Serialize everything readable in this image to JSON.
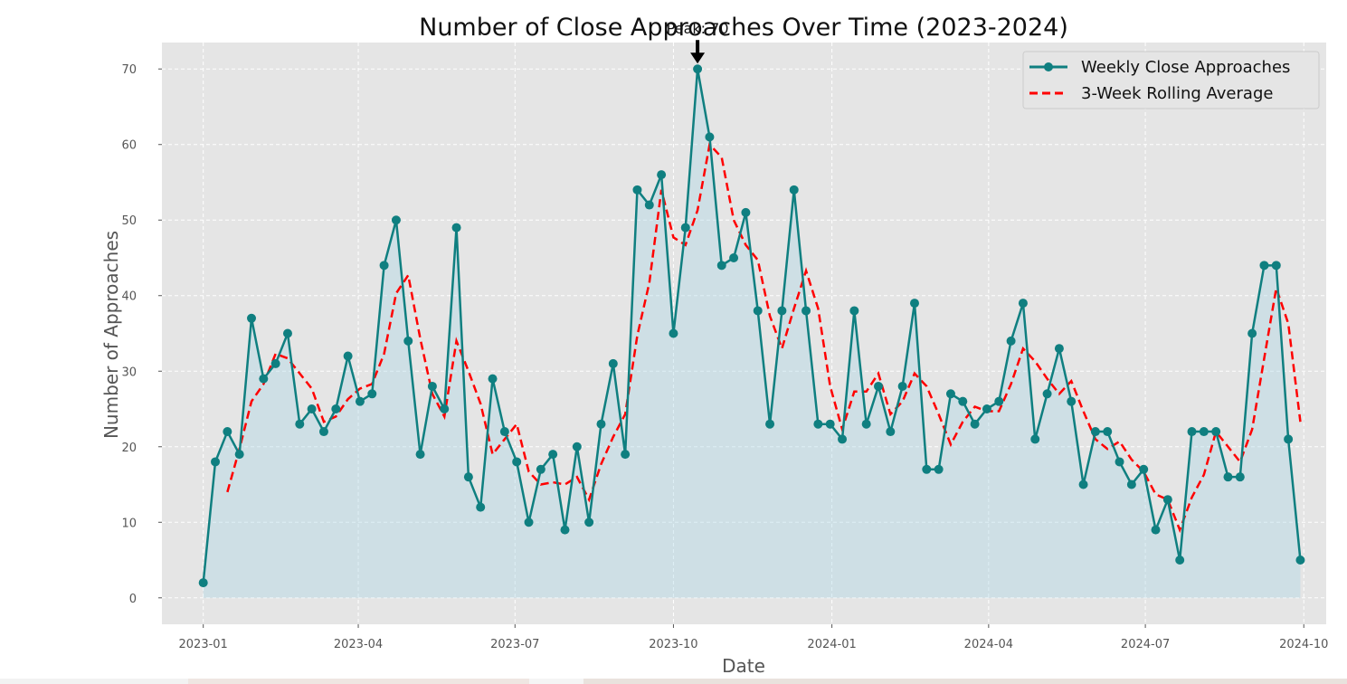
{
  "chart_data": {
    "type": "line",
    "title": "Number of Close Approaches Over Time (2023-2024)",
    "xlabel": "Date",
    "ylabel": "Number of Approaches",
    "ylim": [
      -3.5,
      73.5
    ],
    "xlim": [
      "2022-12-08",
      "2024-10-14"
    ],
    "grid": true,
    "legend_placement": "top-right",
    "x_ticks": [
      "2023-01-01",
      "2023-04-01",
      "2023-07-01",
      "2023-10-01",
      "2024-01-01",
      "2024-04-01",
      "2024-07-01",
      "2024-10-01"
    ],
    "x_tick_labels": [
      "2023-01",
      "2023-04",
      "2023-07",
      "2023-10",
      "2024-01",
      "2024-04",
      "2024-07",
      "2024-10"
    ],
    "y_ticks": [
      0,
      10,
      20,
      30,
      40,
      50,
      60,
      70
    ],
    "x": [
      "2023-01-01",
      "2023-01-08",
      "2023-01-15",
      "2023-01-22",
      "2023-01-29",
      "2023-02-05",
      "2023-02-12",
      "2023-02-19",
      "2023-02-26",
      "2023-03-05",
      "2023-03-12",
      "2023-03-19",
      "2023-03-26",
      "2023-04-02",
      "2023-04-09",
      "2023-04-16",
      "2023-04-23",
      "2023-04-30",
      "2023-05-07",
      "2023-05-14",
      "2023-05-21",
      "2023-05-28",
      "2023-06-04",
      "2023-06-11",
      "2023-06-18",
      "2023-06-25",
      "2023-07-02",
      "2023-07-09",
      "2023-07-16",
      "2023-07-23",
      "2023-07-30",
      "2023-08-06",
      "2023-08-13",
      "2023-08-20",
      "2023-08-27",
      "2023-09-03",
      "2023-09-10",
      "2023-09-17",
      "2023-09-24",
      "2023-10-01",
      "2023-10-08",
      "2023-10-15",
      "2023-10-22",
      "2023-10-29",
      "2023-11-05",
      "2023-11-12",
      "2023-11-19",
      "2023-11-26",
      "2023-12-03",
      "2023-12-10",
      "2023-12-17",
      "2023-12-24",
      "2023-12-31",
      "2024-01-07",
      "2024-01-14",
      "2024-01-21",
      "2024-01-28",
      "2024-02-04",
      "2024-02-11",
      "2024-02-18",
      "2024-02-25",
      "2024-03-03",
      "2024-03-10",
      "2024-03-17",
      "2024-03-24",
      "2024-03-31",
      "2024-04-07",
      "2024-04-14",
      "2024-04-21",
      "2024-04-28",
      "2024-05-05",
      "2024-05-12",
      "2024-05-19",
      "2024-05-26",
      "2024-06-02",
      "2024-06-09",
      "2024-06-16",
      "2024-06-23",
      "2024-06-30",
      "2024-07-07",
      "2024-07-14",
      "2024-07-21",
      "2024-07-28",
      "2024-08-04",
      "2024-08-11",
      "2024-08-18",
      "2024-08-25",
      "2024-09-01",
      "2024-09-08",
      "2024-09-15",
      "2024-09-22",
      "2024-09-29"
    ],
    "series": [
      {
        "name": "Weekly Close Approaches",
        "color": "#0f7f80",
        "style": "solid-with-markers",
        "values": [
          2,
          18,
          22,
          19,
          37,
          29,
          31,
          35,
          23,
          25,
          22,
          25,
          32,
          26,
          27,
          44,
          50,
          34,
          19,
          28,
          25,
          49,
          16,
          12,
          29,
          22,
          18,
          10,
          17,
          19,
          9,
          20,
          10,
          23,
          31,
          19,
          54,
          52,
          56,
          35,
          49,
          70,
          61,
          44,
          45,
          51,
          38,
          23,
          38,
          54,
          38,
          23,
          23,
          21,
          38,
          23,
          28,
          22,
          28,
          39,
          17,
          17,
          27,
          26,
          23,
          25,
          26,
          34,
          39,
          21,
          27,
          33,
          26,
          15,
          22,
          22,
          18,
          15,
          17,
          9,
          13,
          5,
          22,
          22,
          22,
          16,
          16,
          35,
          44,
          44,
          21,
          5
        ]
      },
      {
        "name": "3-Week Rolling Average",
        "color": "#ff0000",
        "style": "dashed",
        "values": [
          null,
          null,
          14,
          19.7,
          26,
          28.3,
          32.3,
          31.7,
          29.7,
          27.7,
          23.3,
          24,
          26.3,
          27.7,
          28.3,
          32.3,
          40.3,
          42.7,
          34.3,
          27,
          24,
          34,
          30,
          25.7,
          19,
          21,
          23,
          16.7,
          15,
          15.3,
          15,
          16,
          13,
          17.7,
          21.3,
          24.3,
          34.7,
          41.7,
          54,
          47.7,
          46.7,
          51.3,
          60,
          58.3,
          50,
          46.7,
          44.7,
          37.3,
          33,
          38.3,
          43.3,
          38.3,
          28,
          22.3,
          27.3,
          27.3,
          29.7,
          24.3,
          26,
          29.7,
          28,
          24.3,
          20.3,
          23.3,
          25.3,
          24.7,
          24.7,
          28.3,
          33,
          31.3,
          29,
          27,
          28.7,
          24.7,
          21,
          19.7,
          20.7,
          18.3,
          16.7,
          13.7,
          13,
          9,
          13.3,
          16.3,
          22,
          20,
          18,
          22.3,
          31.7,
          41,
          36.3,
          23.3
        ]
      }
    ],
    "annotation": {
      "text": "Peak: 70",
      "x": "2023-10-15",
      "y": 70
    },
    "colors": {
      "axes_bg": "#e5e5e5",
      "grid": "#ffffff",
      "fill": "#add8e6",
      "arrow": "#000000"
    }
  }
}
